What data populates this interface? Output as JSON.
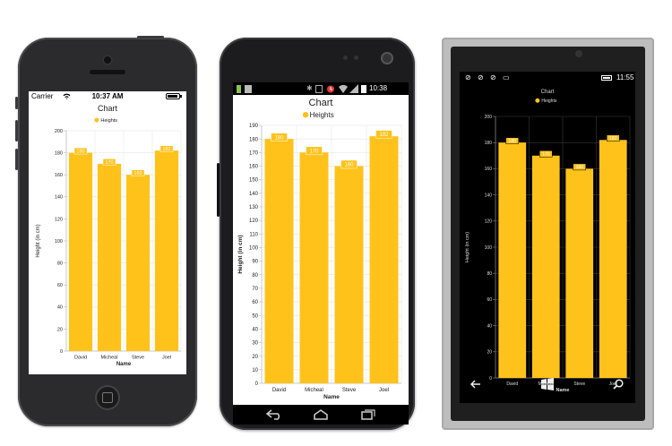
{
  "iphone_status": {
    "carrier": "Carrier",
    "time": "10:37 AM"
  },
  "android_status": {
    "time": "10:38"
  },
  "winphone_status": {
    "time": "11:55"
  },
  "chart_data": {
    "type": "bar",
    "title": "Chart",
    "legend": "Heights",
    "legend_placement": "top-center",
    "categories": [
      "David",
      "Micheal",
      "Steve",
      "Joel"
    ],
    "series": [
      {
        "name": "Heights",
        "values": [
          180,
          170,
          160,
          182
        ]
      }
    ],
    "data_labels": [
      "180",
      "170",
      "160",
      "182"
    ],
    "xlabel": "Name",
    "ylabel": "Height (in cm)",
    "bar_color": "#FFC21A",
    "label_color": "#FFFFFF",
    "charts": [
      {
        "theme": "light",
        "ylim": [
          0,
          200
        ],
        "step": 20,
        "grid": true,
        "yticks": [
          "0",
          "20",
          "40",
          "60",
          "80",
          "100",
          "120",
          "140",
          "160",
          "180",
          "200"
        ]
      },
      {
        "theme": "light",
        "ylim": [
          0,
          190
        ],
        "step": 10,
        "grid": true,
        "yticks": [
          "0",
          "10",
          "20",
          "30",
          "40",
          "50",
          "60",
          "70",
          "80",
          "90",
          "100",
          "110",
          "120",
          "130",
          "140",
          "150",
          "160",
          "170",
          "180",
          "190"
        ]
      },
      {
        "theme": "dark",
        "ylim": [
          0,
          200
        ],
        "step": 20,
        "grid": true,
        "yticks": [
          "0",
          "20",
          "40",
          "60",
          "80",
          "100",
          "120",
          "140",
          "160",
          "180",
          "200"
        ]
      }
    ]
  }
}
